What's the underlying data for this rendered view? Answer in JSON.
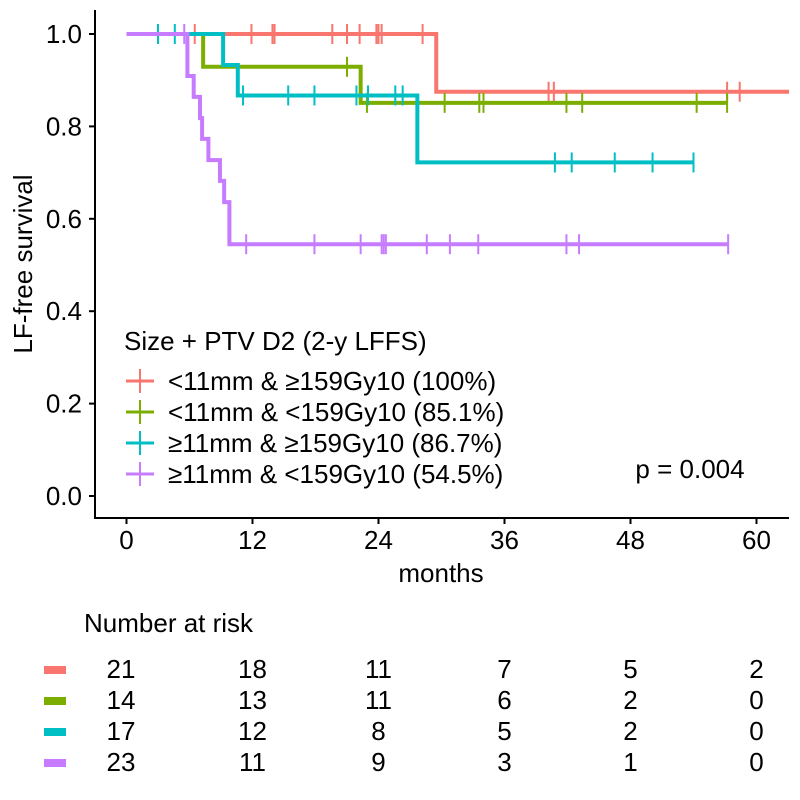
{
  "chart_data": {
    "type": "line",
    "subtype": "kaplan-meier",
    "title": "",
    "xlabel": "months",
    "ylabel": "LF-free survival",
    "xlim": [
      -2.3,
      63.1
    ],
    "ylim": [
      -0.05,
      1.05
    ],
    "x_ticks": [
      0,
      12,
      24,
      36,
      48,
      60
    ],
    "y_ticks": [
      0.0,
      0.2,
      0.4,
      0.6,
      0.8,
      1.0
    ],
    "y_tick_labels": [
      "0.0",
      "0.2",
      "0.4",
      "0.6",
      "0.8",
      "1.0"
    ],
    "grid": false,
    "legend": {
      "title": "Size + PTV D2 (2-y LFFS)",
      "placement": "bottom-left-inside"
    },
    "annotation": "p = 0.004",
    "series": [
      {
        "name": "<11mm & ≥159Gy10 (100%)",
        "color": "#F8766D",
        "steps": [
          [
            0,
            1.0
          ],
          [
            29.5,
            0.875
          ]
        ],
        "end": 63.1,
        "censored": [
          6.5,
          11.9,
          13.9,
          14.1,
          19.6,
          21.0,
          22.2,
          23.8,
          24.0,
          24.3,
          28.2,
          40.2,
          40.7,
          57.2,
          58.4
        ]
      },
      {
        "name": "<11mm & <159Gy10 (85.1%)",
        "color": "#7CAE00",
        "steps": [
          [
            0,
            1.0
          ],
          [
            7.3,
            0.929
          ],
          [
            22.3,
            0.851
          ]
        ],
        "end": 57.2,
        "censored": [
          21.0,
          22.9,
          30.3,
          33.6,
          34.0,
          41.9,
          43.4,
          54.3,
          57.2
        ]
      },
      {
        "name": "≥11mm & ≥159Gy10 (86.7%)",
        "color": "#00BFC4",
        "steps": [
          [
            0,
            1.0
          ],
          [
            9.2,
            0.933
          ],
          [
            10.6,
            0.867
          ],
          [
            27.7,
            0.722
          ]
        ],
        "end": 54.0,
        "censored": [
          3.0,
          4.6,
          11.1,
          15.4,
          17.9,
          21.9,
          23.0,
          25.6,
          26.3,
          40.8,
          42.4,
          46.5,
          50.1,
          54.0
        ]
      },
      {
        "name": "≥11mm & <159Gy10 (54.5%)",
        "color": "#C77CFF",
        "steps": [
          [
            0,
            1.0
          ],
          [
            5.8,
            0.909
          ],
          [
            6.4,
            0.864
          ],
          [
            7.0,
            0.818
          ],
          [
            7.2,
            0.773
          ],
          [
            7.8,
            0.727
          ],
          [
            8.9,
            0.682
          ],
          [
            9.3,
            0.636
          ],
          [
            9.8,
            0.545
          ]
        ],
        "end": 57.3,
        "censored": [
          5.5,
          11.4,
          17.9,
          22.3,
          24.3,
          24.5,
          24.7,
          28.6,
          30.8,
          33.5,
          41.9,
          43.1,
          57.3
        ]
      }
    ],
    "risk_table": {
      "title": "Number at risk",
      "times": [
        0,
        12,
        24,
        36,
        48,
        60
      ],
      "rows": [
        {
          "color": "#F8766D",
          "values": [
            21,
            18,
            11,
            7,
            5,
            2
          ]
        },
        {
          "color": "#7CAE00",
          "values": [
            14,
            13,
            11,
            6,
            2,
            0
          ]
        },
        {
          "color": "#00BFC4",
          "values": [
            17,
            12,
            8,
            5,
            2,
            0
          ]
        },
        {
          "color": "#C77CFF",
          "values": [
            23,
            11,
            9,
            3,
            1,
            0
          ]
        }
      ]
    }
  }
}
